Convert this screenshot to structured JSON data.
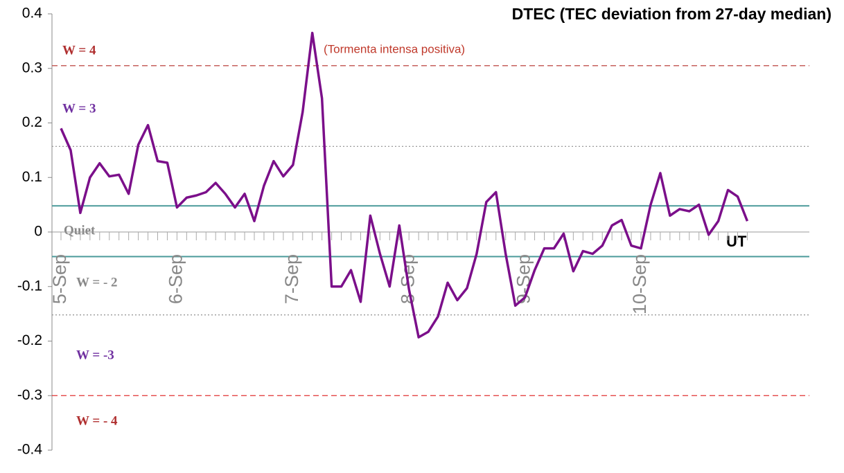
{
  "chart_data": {
    "type": "line",
    "title": "DTEC (TEC deviation from 27-day median)",
    "annotation": "(Tormenta intensa positiva)",
    "x_label": "UT",
    "categories": [
      "5-Sep",
      null,
      null,
      null,
      null,
      null,
      null,
      null,
      null,
      null,
      null,
      null,
      "6-Sep",
      null,
      null,
      null,
      null,
      null,
      null,
      null,
      null,
      null,
      null,
      null,
      "7-Sep",
      null,
      null,
      null,
      null,
      null,
      null,
      null,
      null,
      null,
      null,
      null,
      "8-Sep",
      null,
      null,
      null,
      null,
      null,
      null,
      null,
      null,
      null,
      null,
      null,
      "9-Sep",
      null,
      null,
      null,
      null,
      null,
      null,
      null,
      null,
      null,
      null,
      null,
      "10-Sep",
      null,
      null,
      null,
      null,
      null,
      null,
      null,
      null,
      null,
      null,
      null
    ],
    "series": [
      {
        "name": "DTEC",
        "color": "#7b0f8a",
        "values": [
          0.19,
          0.15,
          0.035,
          0.1,
          0.126,
          0.102,
          0.105,
          0.07,
          0.16,
          0.196,
          0.13,
          0.127,
          0.045,
          0.063,
          0.067,
          0.073,
          0.09,
          0.07,
          0.045,
          0.07,
          0.02,
          0.085,
          0.13,
          0.102,
          0.123,
          0.22,
          0.365,
          0.245,
          -0.1,
          -0.1,
          -0.07,
          -0.128,
          0.03,
          -0.04,
          -0.1,
          0.012,
          -0.105,
          -0.193,
          -0.183,
          -0.155,
          -0.093,
          -0.125,
          -0.103,
          -0.04,
          0.055,
          0.073,
          -0.04,
          -0.135,
          -0.12,
          -0.07,
          -0.03,
          -0.03,
          -0.003,
          -0.072,
          -0.035,
          -0.04,
          -0.025,
          0.012,
          0.022,
          -0.025,
          -0.03,
          0.05,
          0.108,
          0.03,
          0.042,
          0.038,
          0.05,
          -0.005,
          0.02,
          0.077,
          0.065,
          0.02
        ]
      }
    ],
    "ylim": [
      -0.4,
      0.4
    ],
    "yticks": [
      -0.4,
      -0.3,
      -0.2,
      -0.1,
      0,
      0.1,
      0.2,
      0.3,
      0.4
    ],
    "reference_lines": [
      {
        "value": 0.305,
        "color": "#c0504d",
        "style": "dashed"
      },
      {
        "value": 0.157,
        "color": "#999999",
        "style": "dotted"
      },
      {
        "value": 0.048,
        "color": "#4a9a9a",
        "style": "solid"
      },
      {
        "value": -0.045,
        "color": "#4a9a9a",
        "style": "solid"
      },
      {
        "value": -0.152,
        "color": "#999999",
        "style": "dotted"
      },
      {
        "value": -0.3,
        "color": "#e03030",
        "style": "dashed"
      }
    ],
    "zone_labels": [
      "W = 4",
      "W = 3",
      "Quiet",
      "W = - 2",
      "W = -3",
      "W = - 4"
    ]
  }
}
